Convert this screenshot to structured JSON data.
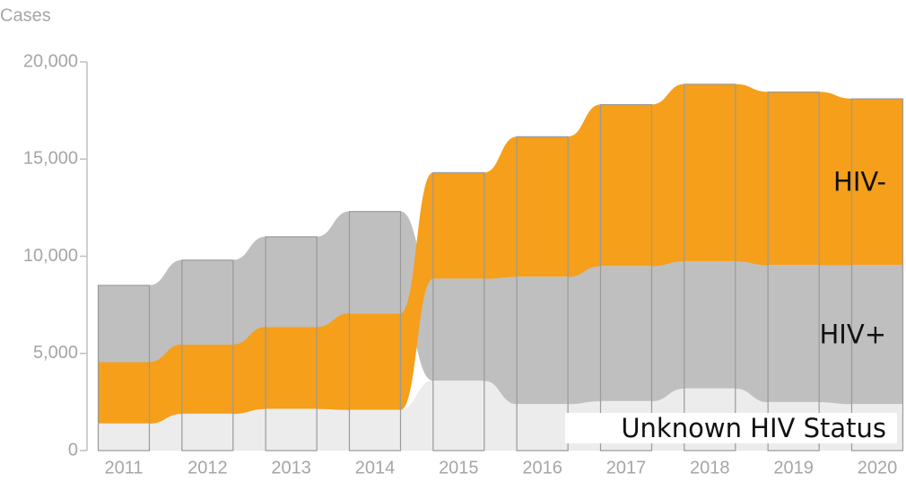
{
  "chart_data": {
    "type": "alluvial",
    "y_axis_label": "Cases",
    "categories": [
      "2011",
      "2012",
      "2013",
      "2014",
      "2015",
      "2016",
      "2017",
      "2018",
      "2019",
      "2020"
    ],
    "series": [
      {
        "name": "Unknown HIV Status",
        "color": "#ececec",
        "values": [
          1400,
          1900,
          2150,
          2100,
          3600,
          2400,
          2550,
          3200,
          2500,
          2400
        ]
      },
      {
        "name": "HIV+",
        "color": "#bfbfbf",
        "values": [
          3950,
          4350,
          4650,
          5250,
          5250,
          6550,
          6950,
          6550,
          7050,
          7150
        ]
      },
      {
        "name": "HIV-",
        "color": "#f59f1b",
        "values": [
          3150,
          3550,
          4200,
          4950,
          5450,
          7200,
          8300,
          9100,
          8900,
          8550
        ]
      }
    ],
    "ylim": [
      0,
      20000
    ],
    "yticks": [
      0,
      {
        "value": 5000,
        "label": "5,000"
      },
      {
        "value": 10000,
        "label": "10,000"
      },
      {
        "value": 15000,
        "label": "15,000"
      },
      {
        "value": 20000,
        "label": "20,000"
      }
    ]
  }
}
